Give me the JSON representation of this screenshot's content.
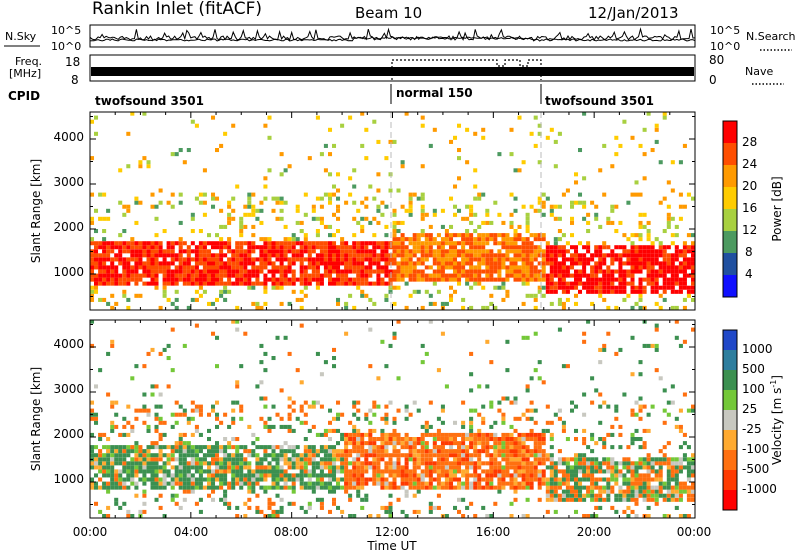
{
  "header": {
    "title": "Rankin Inlet (fitACF)",
    "beam": "Beam 10",
    "date": "12/Jan/2013"
  },
  "noise_panel": {
    "left_label": "N.Sky",
    "left_ticks": [
      "10^5",
      "10^0"
    ],
    "right_label": "N.Search",
    "right_ticks": [
      "10^5",
      "10^0"
    ]
  },
  "freq_panel": {
    "left_label_1": "Freq.",
    "left_label_2": "[MHz]",
    "left_ticks": [
      "18",
      "8"
    ],
    "right_label": "Nave",
    "right_ticks": [
      "80",
      "0"
    ]
  },
  "cpid": {
    "label": "CPID",
    "segments": [
      {
        "name": "twofsound 3501",
        "start": 0,
        "end": 12
      },
      {
        "name": "normal 150",
        "start": 12,
        "end": 18
      },
      {
        "name": "twofsound 3501",
        "start": 18,
        "end": 24
      }
    ]
  },
  "power_panel": {
    "ylabel": "Slant Range [km]",
    "yticks": [
      "1000",
      "2000",
      "3000",
      "4000"
    ],
    "colorbar_label": "Power [dB]",
    "colorbar_ticks": [
      "28",
      "24",
      "20",
      "16",
      "12",
      "8",
      "4"
    ],
    "colors": [
      "#ff0000",
      "#ff4e00",
      "#ff9a00",
      "#ffcc00",
      "#a8d040",
      "#4c9a60",
      "#2050a0",
      "#1010ff"
    ]
  },
  "velocity_panel": {
    "ylabel": "Slant Range [km]",
    "yticks": [
      "1000",
      "2000",
      "3000",
      "4000"
    ],
    "colorbar_label": "Velocity [m s",
    "colorbar_sup": "-1",
    "colorbar_close": "]",
    "colorbar_ticks": [
      "1000",
      "500",
      "100",
      "25",
      "-25",
      "-100",
      "-500",
      "-1000"
    ],
    "colors": [
      "#2048c8",
      "#2e7e9e",
      "#3c9050",
      "#74c838",
      "#c8c8c0",
      "#ffaa30",
      "#ff7010",
      "#ff3a00",
      "#ff0000"
    ]
  },
  "x_axis": {
    "label": "Time UT",
    "ticks": [
      "00:00",
      "04:00",
      "08:00",
      "12:00",
      "16:00",
      "20:00",
      "00:00"
    ]
  },
  "chart_data": [
    {
      "type": "heatmap",
      "title": "Power",
      "xlabel": "Time UT",
      "ylabel": "Slant Range [km]",
      "x_range_hours": [
        0,
        24
      ],
      "ylim": [
        200,
        4600
      ],
      "color_scale_label": "Power [dB]",
      "color_scale_range": [
        0,
        30
      ],
      "mode_switch_hours": [
        12,
        18
      ],
      "note_bands": [
        {
          "from_hour": 0,
          "to_hour": 12,
          "range_km": [
            700,
            1700
          ],
          "dominant_dB": 26
        },
        {
          "from_hour": 12,
          "to_hour": 18,
          "range_km": [
            800,
            1900
          ],
          "dominant_dB": 22
        },
        {
          "from_hour": 18,
          "to_hour": 24,
          "range_km": [
            500,
            1600
          ],
          "dominant_dB": 28
        }
      ]
    },
    {
      "type": "heatmap",
      "title": "Velocity",
      "xlabel": "Time UT",
      "ylabel": "Slant Range [km]",
      "x_range_hours": [
        0,
        24
      ],
      "ylim": [
        200,
        4600
      ],
      "color_scale_label": "Velocity [m s-1]",
      "color_scale_range": [
        -1000,
        1000
      ],
      "note_bands": [
        {
          "from_hour": 0,
          "to_hour": 10,
          "range_km": [
            800,
            1800
          ],
          "dominant_ms": 150
        },
        {
          "from_hour": 10,
          "to_hour": 18,
          "range_km": [
            800,
            2000
          ],
          "dominant_ms": -300
        },
        {
          "from_hour": 18,
          "to_hour": 24,
          "range_km": [
            500,
            1500
          ],
          "dominant_ms": 0
        }
      ]
    }
  ]
}
